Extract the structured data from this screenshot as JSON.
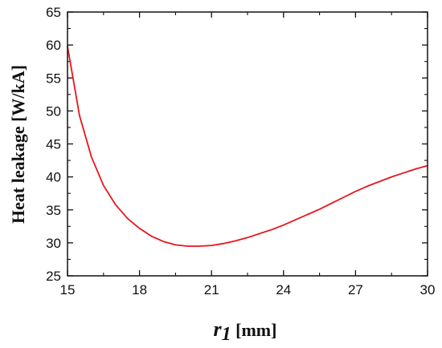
{
  "chart_data": {
    "type": "line",
    "xlabel": {
      "symbol": "r",
      "subscript": "1",
      "unit": "[mm]"
    },
    "ylabel": "Heat leakage [W/kA]",
    "xlim": [
      15,
      30
    ],
    "ylim": [
      25,
      65
    ],
    "xticks": [
      15,
      18,
      21,
      24,
      27,
      30
    ],
    "yticks": [
      25,
      30,
      35,
      40,
      45,
      50,
      55,
      60,
      65
    ],
    "grid": false,
    "series": [
      {
        "color": "#e8141b",
        "x": [
          15.0,
          15.5,
          16.0,
          16.5,
          17.0,
          17.5,
          18.0,
          18.5,
          19.0,
          19.5,
          20.0,
          20.5,
          21.0,
          21.5,
          22.0,
          22.5,
          23.0,
          23.5,
          24.0,
          24.5,
          25.0,
          25.5,
          26.0,
          26.5,
          27.0,
          27.5,
          28.0,
          28.5,
          29.0,
          29.5,
          30.0
        ],
        "y": [
          59.8,
          49.3,
          43.0,
          38.7,
          35.8,
          33.7,
          32.2,
          31.0,
          30.2,
          29.7,
          29.5,
          29.5,
          29.6,
          29.9,
          30.3,
          30.8,
          31.4,
          32.0,
          32.7,
          33.5,
          34.3,
          35.1,
          36.0,
          36.9,
          37.8,
          38.6,
          39.3,
          40.0,
          40.6,
          41.2,
          41.7
        ]
      }
    ]
  }
}
